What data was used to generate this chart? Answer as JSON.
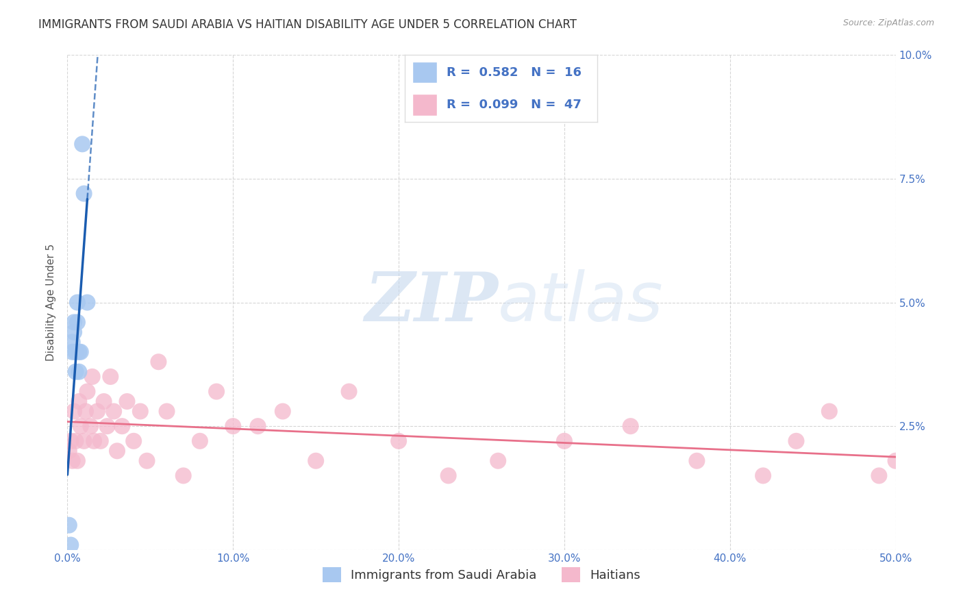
{
  "title": "IMMIGRANTS FROM SAUDI ARABIA VS HAITIAN DISABILITY AGE UNDER 5 CORRELATION CHART",
  "source": "Source: ZipAtlas.com",
  "ylabel": "Disability Age Under 5",
  "xlim": [
    0.0,
    0.5
  ],
  "ylim": [
    -0.005,
    0.105
  ],
  "plot_xlim": [
    0.0,
    0.5
  ],
  "plot_ylim": [
    0.0,
    0.1
  ],
  "xticks": [
    0.0,
    0.1,
    0.2,
    0.3,
    0.4,
    0.5
  ],
  "xticklabels": [
    "0.0%",
    "10.0%",
    "20.0%",
    "30.0%",
    "40.0%",
    "50.0%"
  ],
  "yticks": [
    0.0,
    0.025,
    0.05,
    0.075,
    0.1
  ],
  "yticklabels_right": [
    "",
    "2.5%",
    "5.0%",
    "7.5%",
    "10.0%"
  ],
  "saudi_color": "#a8c8f0",
  "haitian_color": "#f4b8cc",
  "saudi_line_color": "#1a5cb0",
  "haitian_line_color": "#e8708a",
  "R_saudi": 0.582,
  "N_saudi": 16,
  "R_haitian": 0.099,
  "N_haitian": 47,
  "legend_label_saudi": "Immigrants from Saudi Arabia",
  "legend_label_haitian": "Haitians",
  "watermark_zip": "ZIP",
  "watermark_atlas": "atlas",
  "saudi_x": [
    0.001,
    0.002,
    0.003,
    0.003,
    0.004,
    0.004,
    0.005,
    0.005,
    0.006,
    0.006,
    0.007,
    0.007,
    0.008,
    0.009,
    0.01,
    0.012
  ],
  "saudi_y": [
    0.005,
    0.001,
    0.042,
    0.04,
    0.046,
    0.044,
    0.04,
    0.036,
    0.05,
    0.046,
    0.04,
    0.036,
    0.04,
    0.082,
    0.072,
    0.05
  ],
  "haitian_x": [
    0.001,
    0.002,
    0.003,
    0.004,
    0.005,
    0.006,
    0.007,
    0.008,
    0.01,
    0.011,
    0.012,
    0.014,
    0.015,
    0.016,
    0.018,
    0.02,
    0.022,
    0.024,
    0.026,
    0.028,
    0.03,
    0.033,
    0.036,
    0.04,
    0.044,
    0.048,
    0.055,
    0.06,
    0.07,
    0.08,
    0.09,
    0.1,
    0.115,
    0.13,
    0.15,
    0.17,
    0.2,
    0.23,
    0.26,
    0.3,
    0.34,
    0.38,
    0.42,
    0.44,
    0.46,
    0.49,
    0.5
  ],
  "haitian_y": [
    0.02,
    0.022,
    0.018,
    0.028,
    0.022,
    0.018,
    0.03,
    0.025,
    0.022,
    0.028,
    0.032,
    0.025,
    0.035,
    0.022,
    0.028,
    0.022,
    0.03,
    0.025,
    0.035,
    0.028,
    0.02,
    0.025,
    0.03,
    0.022,
    0.028,
    0.018,
    0.038,
    0.028,
    0.015,
    0.022,
    0.032,
    0.025,
    0.025,
    0.028,
    0.018,
    0.032,
    0.022,
    0.015,
    0.018,
    0.022,
    0.025,
    0.018,
    0.015,
    0.022,
    0.028,
    0.015,
    0.018
  ],
  "background_color": "#ffffff",
  "grid_color": "#cccccc",
  "title_fontsize": 12,
  "axis_fontsize": 11,
  "tick_fontsize": 11,
  "stat_fontsize": 14,
  "legend_fontsize": 13,
  "tick_color": "#4472c4"
}
